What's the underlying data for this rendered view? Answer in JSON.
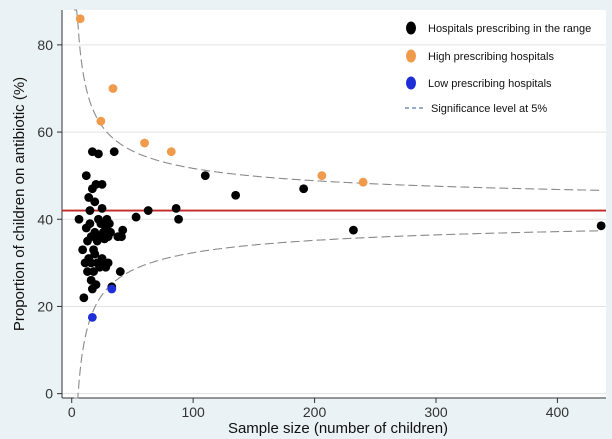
{
  "chart_data": {
    "type": "scatter",
    "title": "",
    "xlabel": "Sample size (number of children)",
    "ylabel": "Proportion of children on antibiotic (%)",
    "xlim": [
      -8,
      440
    ],
    "ylim": [
      -1,
      88
    ],
    "x_ticks": [
      0,
      100,
      200,
      300,
      400
    ],
    "y_ticks": [
      0,
      20,
      40,
      60,
      80
    ],
    "grid": "horizontal",
    "legend_position": "top-right",
    "mean_line": {
      "y": 42,
      "color": "#c0282a"
    },
    "control_limits": {
      "label": "Significance level at 5%",
      "p": 0.42,
      "z": 1.96,
      "color": "#8a8a8a"
    },
    "series": [
      {
        "name": "Hospitals prescribing in the range",
        "color": "#000000",
        "points": [
          [
            6,
            40
          ],
          [
            9,
            33
          ],
          [
            10,
            22
          ],
          [
            11,
            30
          ],
          [
            12,
            38
          ],
          [
            12,
            50
          ],
          [
            13,
            35
          ],
          [
            13,
            28
          ],
          [
            14,
            31
          ],
          [
            14,
            45
          ],
          [
            15,
            42
          ],
          [
            15,
            39
          ],
          [
            16,
            36
          ],
          [
            16,
            30
          ],
          [
            16,
            26
          ],
          [
            17,
            24
          ],
          [
            17,
            47
          ],
          [
            17,
            55.5
          ],
          [
            18,
            33
          ],
          [
            18,
            28
          ],
          [
            19,
            44
          ],
          [
            19,
            37
          ],
          [
            19,
            32
          ],
          [
            20,
            48
          ],
          [
            20,
            25
          ],
          [
            21,
            35
          ],
          [
            21,
            30
          ],
          [
            22,
            36
          ],
          [
            22,
            55
          ],
          [
            22,
            40
          ],
          [
            23,
            29
          ],
          [
            24,
            39
          ],
          [
            24,
            36
          ],
          [
            25,
            31
          ],
          [
            25,
            48
          ],
          [
            25,
            42.5
          ],
          [
            26,
            37
          ],
          [
            26,
            30
          ],
          [
            27,
            35.5
          ],
          [
            28,
            38
          ],
          [
            28,
            29
          ],
          [
            29,
            40
          ],
          [
            30,
            36
          ],
          [
            30,
            30
          ],
          [
            31,
            39
          ],
          [
            32,
            37
          ],
          [
            33,
            24.5
          ],
          [
            35,
            55.5
          ],
          [
            38,
            36
          ],
          [
            40,
            28
          ],
          [
            41,
            36
          ],
          [
            42,
            37.5
          ],
          [
            53,
            40.5
          ],
          [
            63,
            42
          ],
          [
            86,
            42.5
          ],
          [
            88,
            40
          ],
          [
            110,
            50
          ],
          [
            135,
            45.5
          ],
          [
            191,
            47
          ],
          [
            232,
            37.5
          ],
          [
            436,
            38.5
          ]
        ]
      },
      {
        "name": "High prescribing hospitals",
        "color": "#f09a4b",
        "points": [
          [
            7,
            86
          ],
          [
            24,
            62.5
          ],
          [
            34,
            70
          ],
          [
            60,
            57.5
          ],
          [
            82,
            55.5
          ],
          [
            206,
            50
          ],
          [
            240,
            48.5
          ]
        ]
      },
      {
        "name": "Low prescribing hospitals",
        "color": "#1f2fd8",
        "points": [
          [
            17,
            17.5
          ],
          [
            33,
            24
          ]
        ]
      }
    ]
  }
}
